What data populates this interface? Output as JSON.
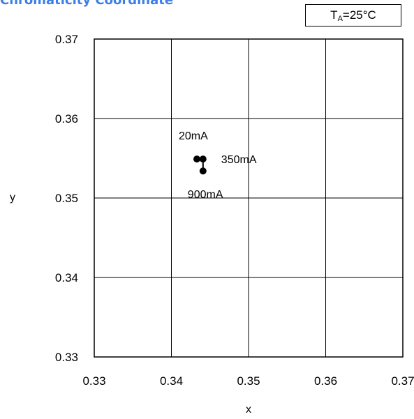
{
  "chart_data": {
    "type": "scatter",
    "title": "Chromaticity Coordinate",
    "condition": {
      "prefix": "T",
      "sub": "A",
      "suffix": "=25°C"
    },
    "xlabel": "x",
    "ylabel": "y",
    "xlim": [
      0.33,
      0.37
    ],
    "ylim": [
      0.33,
      0.37
    ],
    "xticks": [
      "0.33",
      "0.34",
      "0.35",
      "0.36",
      "0.37"
    ],
    "yticks": [
      "0.33",
      "0.34",
      "0.35",
      "0.36",
      "0.37"
    ],
    "grid": true,
    "points": [
      {
        "label": "20mA",
        "x": 0.3433,
        "y": 0.3549
      },
      {
        "label": "350mA",
        "x": 0.3441,
        "y": 0.3549
      },
      {
        "label": "900mA",
        "x": 0.3441,
        "y": 0.3534
      }
    ],
    "point_color": "#000000"
  }
}
